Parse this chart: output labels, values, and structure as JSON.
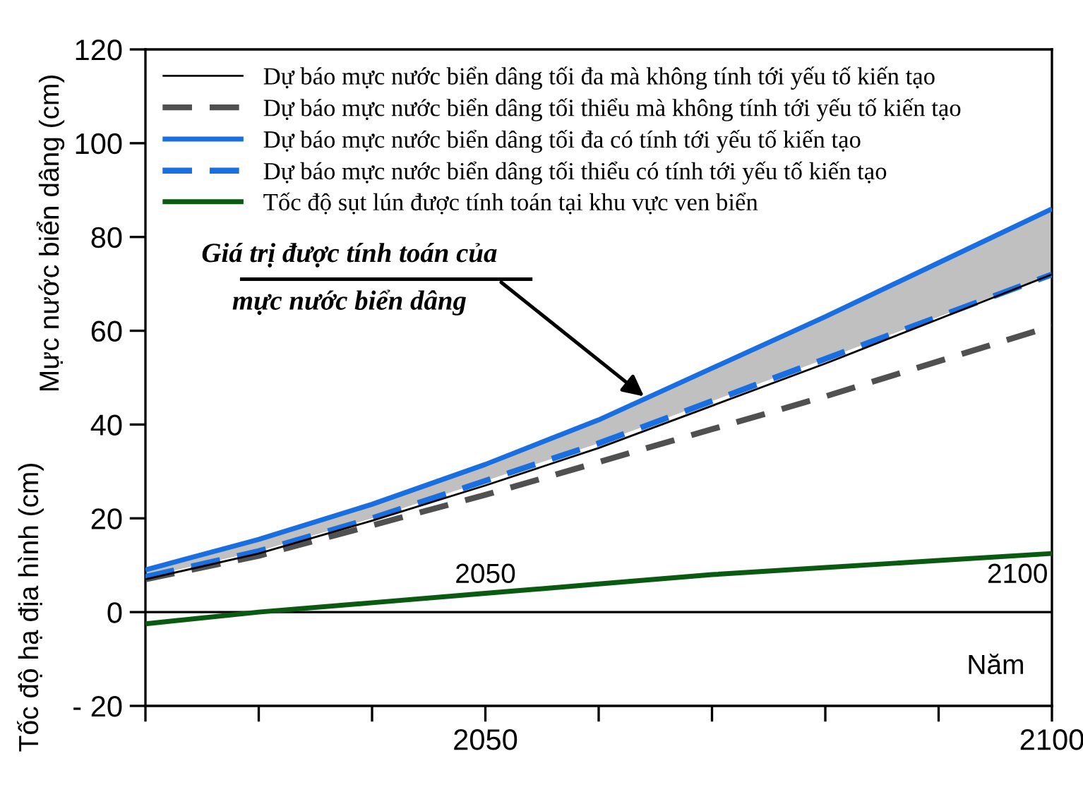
{
  "chart_data": {
    "type": "line",
    "ylabel": "Mực nước biển dâng (cm)",
    "xlabel": "Năm",
    "x": [
      2020,
      2030,
      2040,
      2050,
      2060,
      2070,
      2080,
      2090,
      2100
    ],
    "series": [
      {
        "name": "Dự báo mực nước biển dâng tối đa mà không tính tới yếu tố kiến tạo",
        "color": "#000000",
        "line_style": "solid",
        "values": [
          7,
          12.5,
          19.5,
          27,
          35,
          44,
          53,
          62.5,
          72
        ]
      },
      {
        "name": "Dự báo mực nước biển dâng tối thiểu mà không tính tới yếu tố kiến tạo",
        "color": "#505050",
        "line_style": "dashed",
        "values": [
          7,
          12,
          18.5,
          25,
          32,
          39,
          46,
          53.5,
          61
        ]
      },
      {
        "name": "Dự báo mực nước biển dâng tối đa có tính tới yếu tố kiến tạo",
        "color": "#1a6fe0",
        "line_style": "solid",
        "values": [
          9,
          15.5,
          23,
          31.5,
          41,
          52,
          63,
          74.5,
          86
        ]
      },
      {
        "name": "Dự báo mực nước biển dâng tối thiểu có tính tới yếu tố kiến tạo",
        "color": "#1a6fe0",
        "line_style": "dashed",
        "values": [
          7.5,
          13,
          20,
          28,
          36,
          45,
          54,
          63,
          72
        ],
        "lower": [
          7.5,
          13,
          20,
          28,
          36,
          45,
          54,
          63,
          72
        ],
        "upper": [
          9,
          15.5,
          23,
          31.5,
          41,
          52,
          63,
          74.5,
          86
        ]
      },
      {
        "name": "Tốc độ sụt lún được tính toán tại khu vực ven biển",
        "color": "#0b5a12",
        "line_style": "solid",
        "values": [
          -2.5,
          0,
          2,
          4,
          6,
          8,
          9.5,
          11,
          12.5
        ]
      }
    ],
    "xlim": [
      2020,
      2100
    ],
    "xticks": [
      {
        "value": 2020,
        "label": null
      },
      {
        "value": 2030,
        "label": null
      },
      {
        "value": 2040,
        "label": null
      },
      2050,
      {
        "value": 2060,
        "label": null
      },
      {
        "value": 2070,
        "label": null
      },
      {
        "value": 2080,
        "label": null
      },
      {
        "value": 2090,
        "label": null
      },
      2100
    ],
    "ylim": [
      -20,
      120
    ],
    "yticks": [
      {
        "value": -20,
        "label": "- 20"
      },
      0,
      20,
      40,
      60,
      80,
      100,
      120
    ],
    "ref_lines": [
      {
        "axis": "y",
        "value": 0,
        "color": "#000000"
      }
    ],
    "annotations": [
      {
        "text": "Giá trị được tính toán của\nmực nước biển dâng",
        "x": 2064,
        "y": 46
      },
      {
        "text": "2050",
        "x": 2050,
        "y": 0
      },
      {
        "text": "2100",
        "x": 2100,
        "y": 0
      },
      "Tốc độ hạ địa hình (cm)"
    ],
    "legend": "top left",
    "grid": false,
    "marker": "none"
  }
}
